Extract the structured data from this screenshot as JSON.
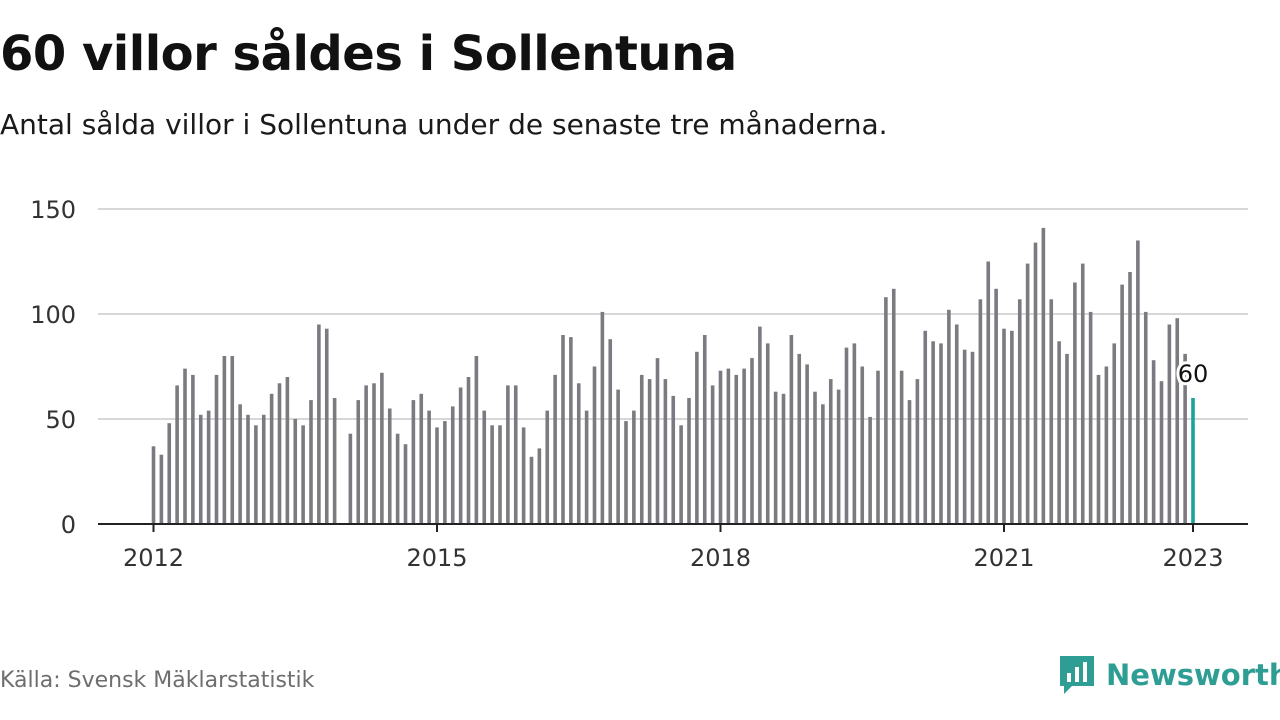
{
  "title": "60 villor såldes i Sollentuna",
  "subtitle": "Antal sålda villor i Sollentuna under de senaste tre månaderna.",
  "source": "Källa: Svensk Mäklarstatistik",
  "brand": {
    "name": "Newsworthy",
    "icon": "newsworthy-logo-icon",
    "color": "#2e9e94"
  },
  "colors": {
    "bar": "#7a7a80",
    "highlight": "#1aa39a",
    "grid": "#d7d7d7",
    "axis": "#222222"
  },
  "chart_data": {
    "type": "bar",
    "x_start": "2012-01",
    "y_ticks": [
      0,
      50,
      100,
      150
    ],
    "ylim": [
      0,
      150
    ],
    "x_ticks": [
      "2012",
      "2015",
      "2018",
      "2021",
      "2023"
    ],
    "grid": true,
    "values": [
      37,
      33,
      48,
      66,
      74,
      71,
      52,
      54,
      71,
      80,
      80,
      57,
      52,
      47,
      52,
      62,
      67,
      70,
      50,
      47,
      59,
      95,
      93,
      60,
      null,
      43,
      59,
      66,
      67,
      72,
      55,
      43,
      38,
      59,
      62,
      54,
      46,
      49,
      56,
      65,
      70,
      80,
      54,
      47,
      47,
      66,
      66,
      46,
      32,
      36,
      54,
      71,
      90,
      89,
      67,
      54,
      75,
      101,
      88,
      64,
      49,
      54,
      71,
      69,
      79,
      69,
      61,
      47,
      60,
      82,
      90,
      66,
      73,
      74,
      71,
      74,
      79,
      94,
      86,
      63,
      62,
      90,
      81,
      76,
      63,
      57,
      69,
      64,
      84,
      86,
      75,
      51,
      73,
      108,
      112,
      73,
      59,
      69,
      92,
      87,
      86,
      102,
      95,
      83,
      82,
      107,
      125,
      112,
      93,
      92,
      107,
      124,
      134,
      141,
      107,
      87,
      81,
      115,
      124,
      101,
      71,
      75,
      86,
      114,
      120,
      135,
      101,
      78,
      68,
      95,
      98,
      81,
      60
    ],
    "highlight": {
      "value": 60,
      "label": "60"
    }
  }
}
